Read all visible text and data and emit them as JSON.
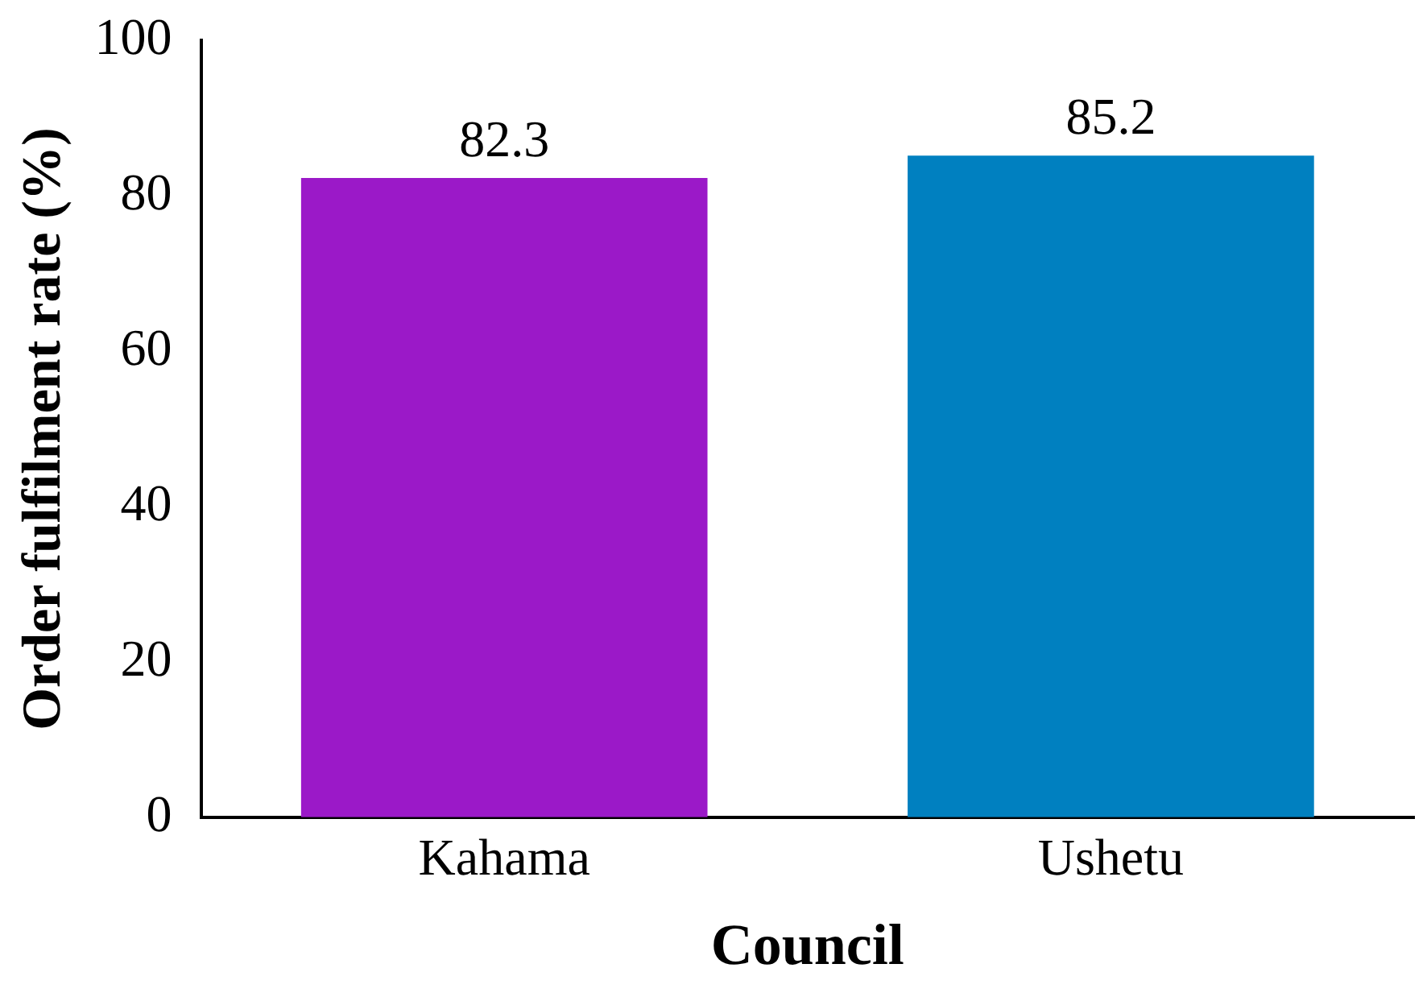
{
  "chart_data": {
    "type": "bar",
    "xlabel": "Council",
    "ylabel": "Order fulfilment rate (%)",
    "categories": [
      "Kahama",
      "Ushetu"
    ],
    "values": [
      82.3,
      85.2
    ],
    "colors": [
      "#9b19c8",
      "#0080c0"
    ],
    "ylim": [
      0,
      100
    ],
    "yticks": [
      0,
      20,
      40,
      60,
      80,
      100
    ],
    "grid": false,
    "legend": false,
    "data_labels": true
  }
}
